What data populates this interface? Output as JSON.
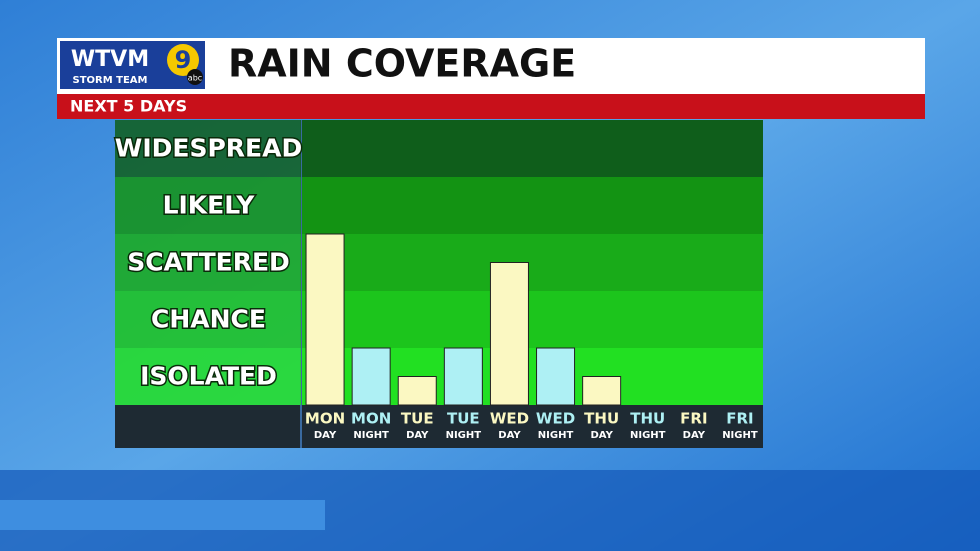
{
  "header": {
    "logo": "WTVM",
    "logo_sub": "STORM TEAM",
    "channel": "9",
    "network": "abc",
    "title": "RAIN COVERAGE",
    "subtitle": "NEXT 5 DAYS"
  },
  "chart_data": {
    "type": "bar",
    "categories": [
      {
        "day": "MON",
        "part": "DAY"
      },
      {
        "day": "MON",
        "part": "NIGHT"
      },
      {
        "day": "TUE",
        "part": "DAY"
      },
      {
        "day": "TUE",
        "part": "NIGHT"
      },
      {
        "day": "WED",
        "part": "DAY"
      },
      {
        "day": "WED",
        "part": "NIGHT"
      },
      {
        "day": "THU",
        "part": "DAY"
      },
      {
        "day": "THU",
        "part": "NIGHT"
      },
      {
        "day": "FRI",
        "part": "DAY"
      },
      {
        "day": "FRI",
        "part": "NIGHT"
      }
    ],
    "values": [
      3,
      1,
      0.5,
      1,
      2.5,
      1,
      0.5,
      0,
      0,
      0
    ],
    "colors": [
      "#fbf8c2",
      "#aef0f4",
      "#fbf8c2",
      "#aef0f4",
      "#fbf8c2",
      "#aef0f4",
      "#fbf8c2",
      "#aef0f4",
      "#fbf8c2",
      "#aef0f4"
    ],
    "ylim": [
      0,
      5
    ],
    "yticks": [
      {
        "value": 0.5,
        "label": "ISOLATED"
      },
      {
        "value": 1.5,
        "label": "CHANCE"
      },
      {
        "value": 2.5,
        "label": "SCATTERED"
      },
      {
        "value": 3.5,
        "label": "LIKELY"
      },
      {
        "value": 4.5,
        "label": "WIDESPREAD"
      }
    ],
    "band_colors": [
      "#22e022",
      "#1cc51c",
      "#19ab19",
      "#139313",
      "#0f5e1b"
    ]
  }
}
